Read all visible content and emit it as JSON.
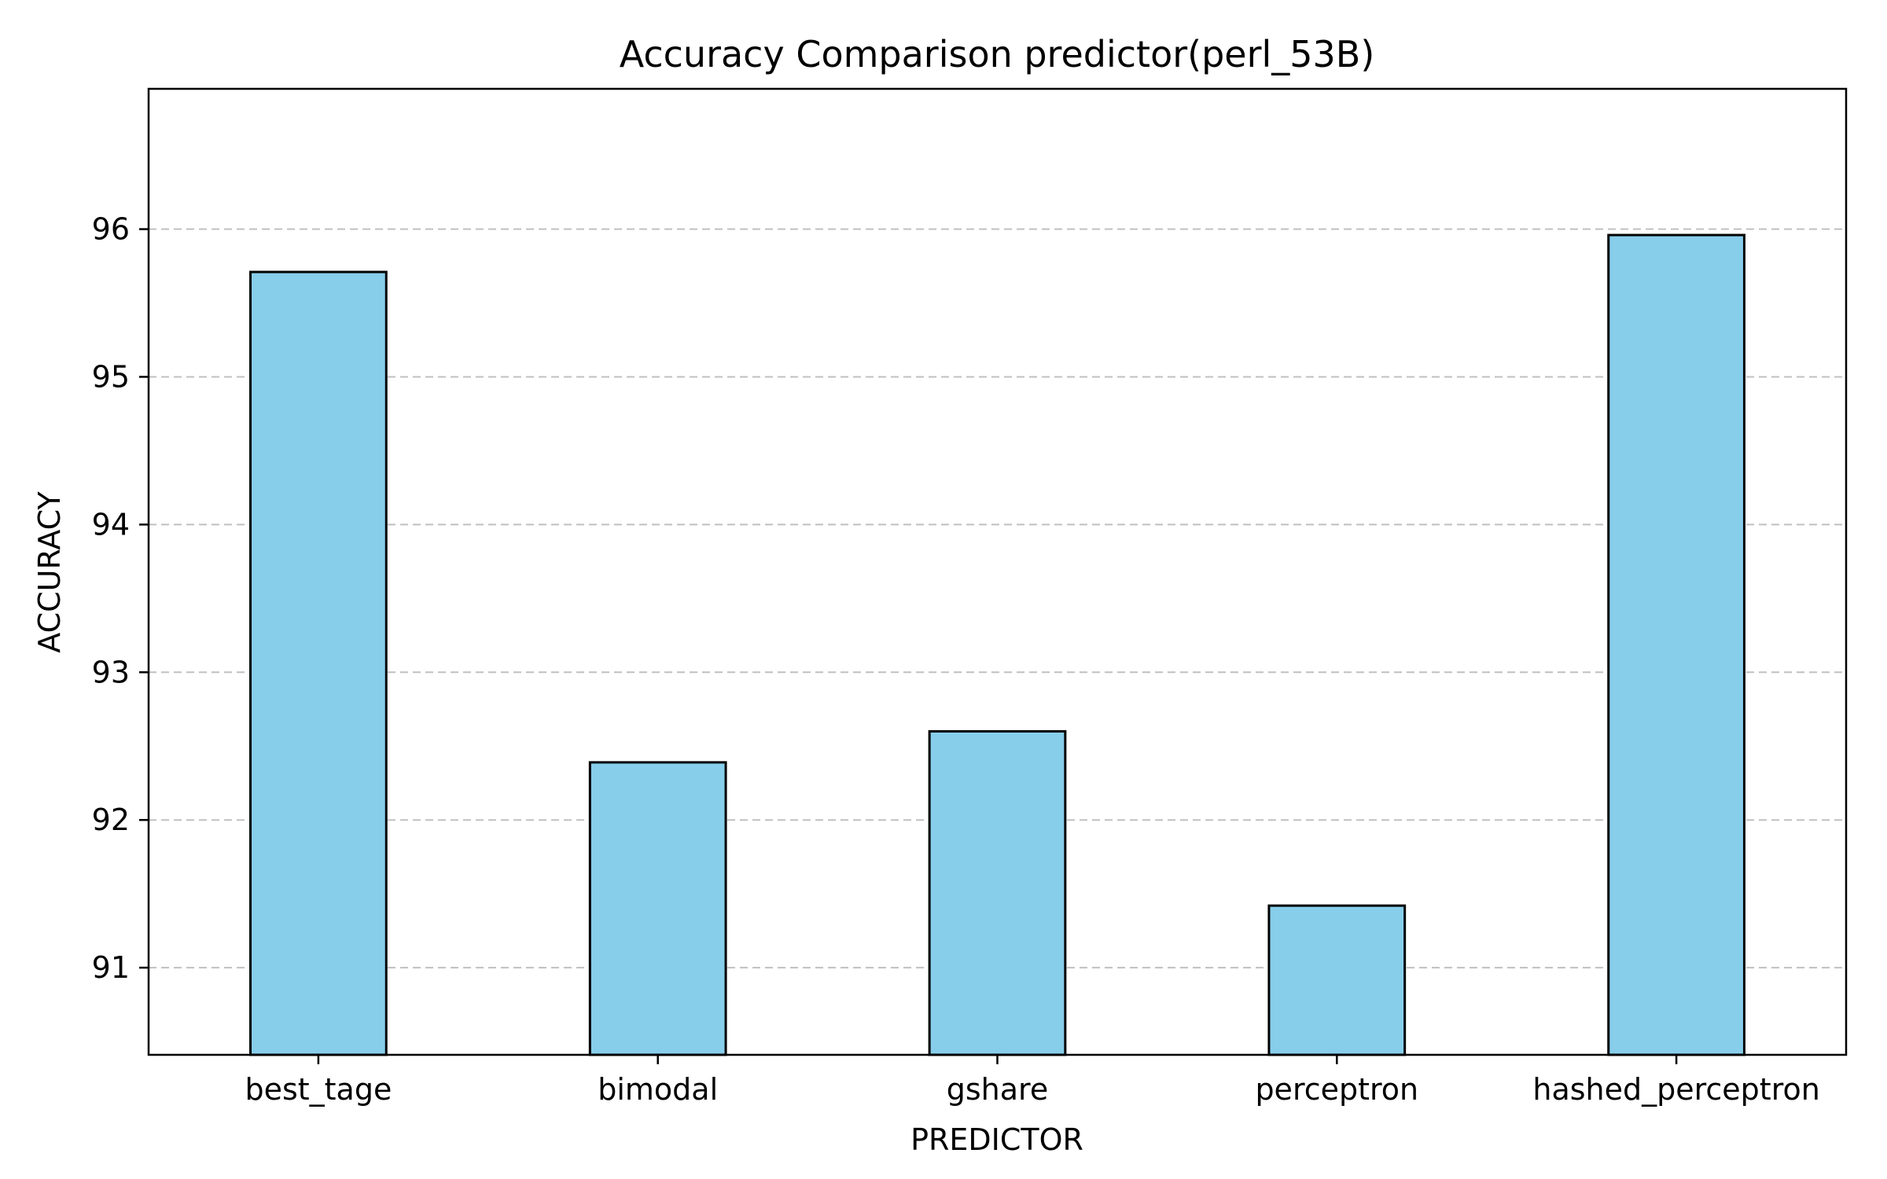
{
  "chart_data": {
    "type": "bar",
    "title": "Accuracy Comparison predictor(perl_53B)",
    "xlabel": "PREDICTOR",
    "ylabel": "ACCURACY",
    "categories": [
      "best_tage",
      "bimodal",
      "gshare",
      "perceptron",
      "hashed_perceptron"
    ],
    "values": [
      95.71,
      92.39,
      92.6,
      91.42,
      95.96
    ],
    "ylim": [
      90.41,
      96.95
    ],
    "yticks": [
      91,
      92,
      93,
      94,
      95,
      96
    ],
    "grid": "y-dashed",
    "colors": {
      "bar_fill": "#87ceeb",
      "bar_edge": "#000000",
      "grid": "#c0c0c0"
    }
  }
}
